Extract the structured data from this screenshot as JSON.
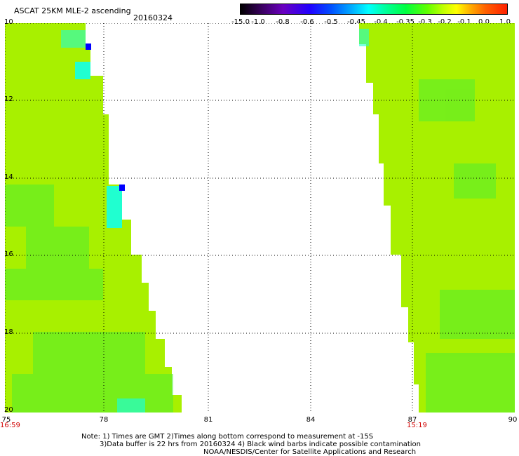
{
  "title": "ASCAT 25KM MLE-2 ascending",
  "date": "20160324",
  "colorbar": {
    "ticks": [
      "-15.0",
      "-1.0",
      "-0.8",
      "-0.6",
      "-0.5",
      "-0.45",
      "-0.4",
      "-0.35",
      "-0.3",
      "-0.2",
      "-0.1",
      "0.0",
      "1.0"
    ]
  },
  "axes": {
    "x_ticks": [
      "75",
      "78",
      "81",
      "84",
      "87",
      "90"
    ],
    "y_ticks": [
      "10",
      "12",
      "14",
      "16",
      "18",
      "20"
    ],
    "x_range": [
      75,
      90
    ],
    "y_range": [
      10,
      20
    ]
  },
  "times": {
    "left": "16:59",
    "right": "15:19"
  },
  "notes": {
    "line1": "Note: 1) Times are GMT 2)Times along bottom correspond to measurement at -15S",
    "line2": "3)Data buffer is 22 hrs from 20160324 4) Black wind barbs indicate possible contamination",
    "line3": "NOAA/NESDIS/Center for Satellite Applications and Research"
  },
  "colors": {
    "swath_main": "#a8f000",
    "swath_green": "#40f040",
    "swath_cyan": "#20ffd0",
    "outlier": "#0000ff",
    "time_label": "#d00000"
  }
}
